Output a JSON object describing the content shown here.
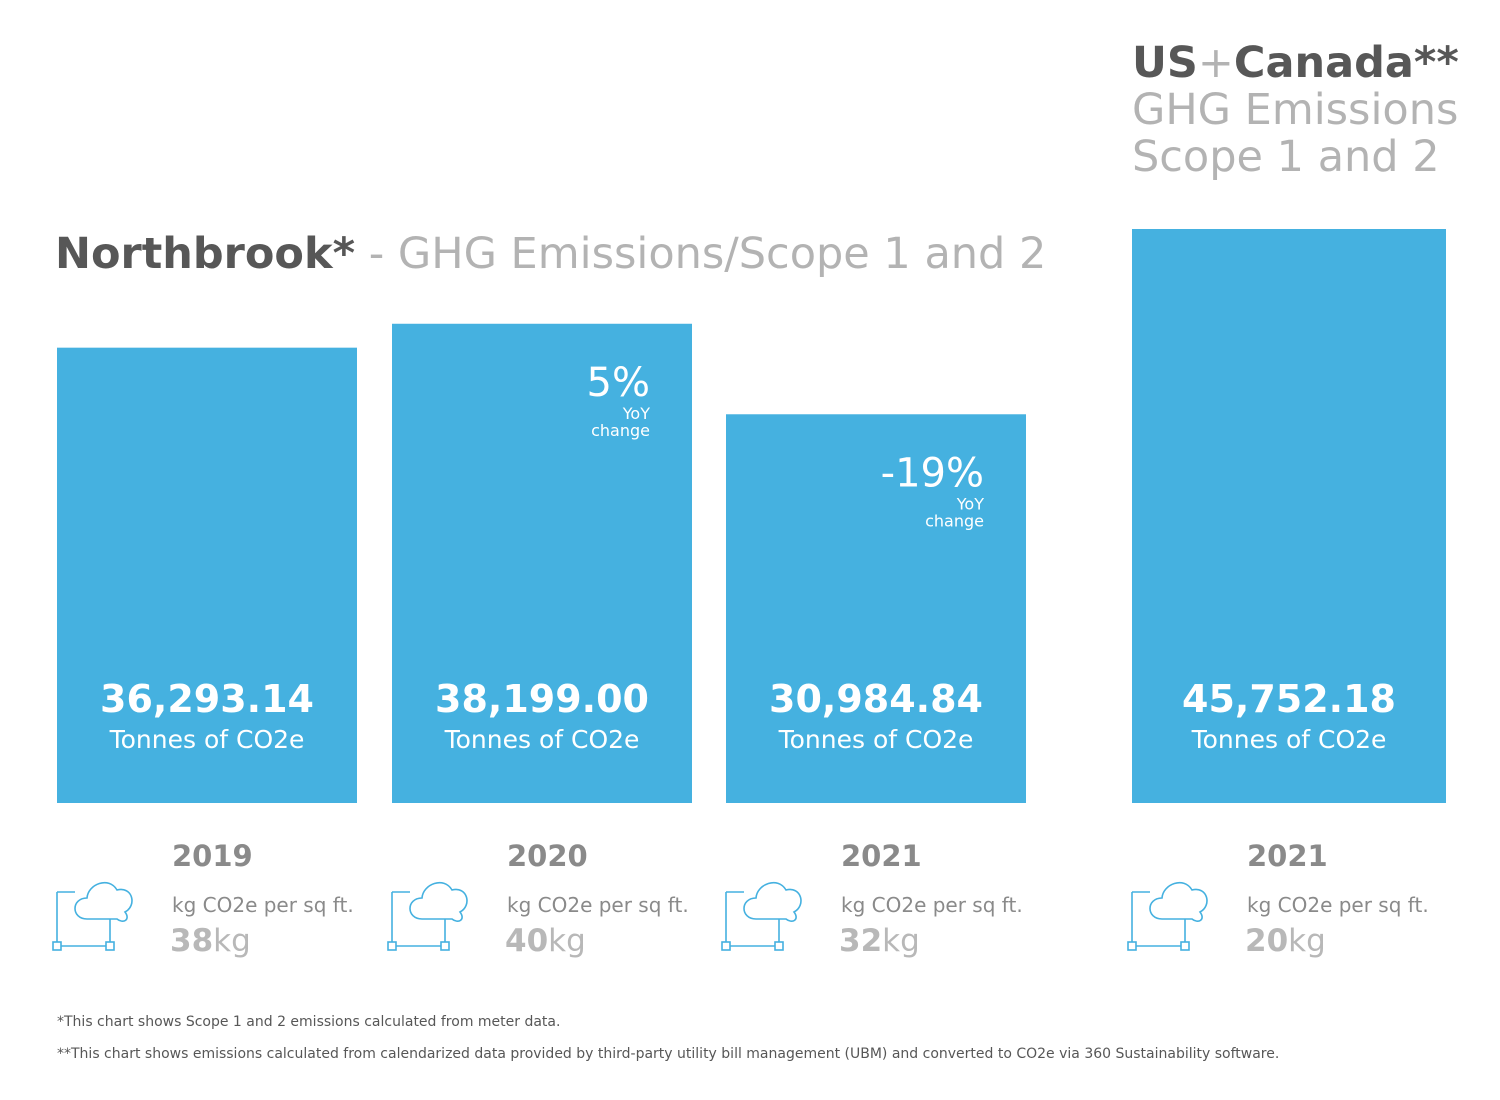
{
  "colors": {
    "bar": "#45b1e0",
    "title_dark": "#575757",
    "title_light": "#b3b3b3",
    "muted": "#8a8a8a"
  },
  "northbrook_title": {
    "bold": "Northbrook*",
    "rest": " - GHG Emissions/Scope 1 and 2"
  },
  "uscanada_title": {
    "us": "US",
    "plus": "+",
    "canada": "Canada**",
    "line2": "GHG Emissions",
    "line3": "Scope 1 and 2"
  },
  "chart_data": {
    "type": "bar",
    "categories": [
      "2019",
      "2020",
      "2021",
      "2021"
    ],
    "values": [
      36293.14,
      38199.0,
      30984.84,
      45752.18
    ],
    "ylim": [
      0,
      45752.18
    ],
    "value_labels": [
      "36,293.14",
      "38,199.00",
      "30,984.84",
      "45,752.18"
    ],
    "unit_label": "Tonnes of CO2e",
    "yoy_change": [
      "",
      "5%",
      "-19%",
      ""
    ],
    "yoy_label_line1": "YoY",
    "yoy_label_line2": "change",
    "per_sqft_label": "kg CO2e per sq ft.",
    "per_sqft_values": [
      "38",
      "40",
      "32",
      "20"
    ],
    "per_sqft_unit": "kg"
  },
  "footnotes": [
    "*This chart shows Scope 1 and 2 emissions calculated from meter data.",
    "**This chart shows emissions calculated from calendarized data provided by third-party utility bill management (UBM) and converted to CO2e via 360 Sustainability software."
  ],
  "icon": "cloud-network-icon"
}
